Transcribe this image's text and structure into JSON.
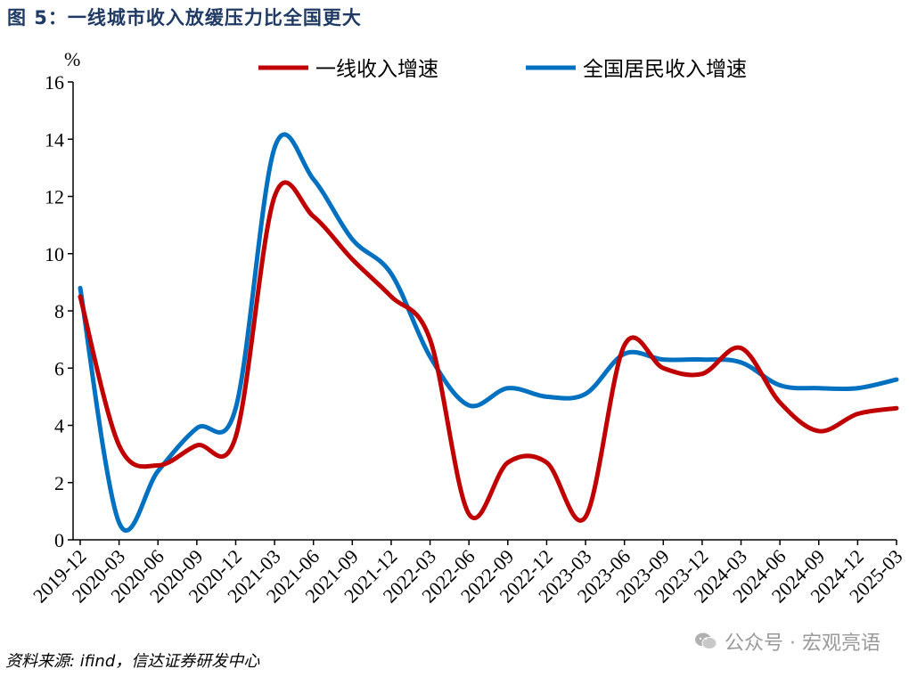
{
  "figure_title": "图 5：一线城市收入放缓压力比全国更大",
  "source_note": "资料来源: ifind，信达证券研发中心",
  "watermark": {
    "text": "公众号 · 宏观亮语",
    "icon": "wechat-icon"
  },
  "chart_data": {
    "type": "line",
    "title": "",
    "xlabel": "",
    "ylabel": "%",
    "ylim": [
      0,
      16
    ],
    "y_ticks": [
      0,
      2,
      4,
      6,
      8,
      10,
      12,
      14,
      16
    ],
    "grid": false,
    "legend_position": "top-right",
    "categories": [
      "2019-12",
      "2020-03",
      "2020-06",
      "2020-09",
      "2020-12",
      "2021-03",
      "2021-06",
      "2021-09",
      "2021-12",
      "2022-03",
      "2022-06",
      "2022-09",
      "2022-12",
      "2023-03",
      "2023-06",
      "2023-09",
      "2023-12",
      "2024-03",
      "2024-06",
      "2024-09",
      "2024-12",
      "2025-03"
    ],
    "series": [
      {
        "name": "一线收入增速",
        "color": "#c00000",
        "values": [
          8.5,
          3.3,
          2.6,
          3.3,
          3.6,
          12.0,
          11.3,
          9.8,
          8.5,
          7.0,
          0.9,
          2.7,
          2.7,
          0.8,
          6.8,
          6.0,
          5.8,
          6.7,
          4.8,
          3.8,
          4.4,
          4.6
        ]
      },
      {
        "name": "全国居民收入增速",
        "color": "#0070c0",
        "values": [
          8.8,
          0.6,
          2.4,
          3.9,
          4.6,
          13.7,
          12.6,
          10.5,
          9.3,
          6.4,
          4.7,
          5.3,
          5.0,
          5.1,
          6.5,
          6.3,
          6.3,
          6.2,
          5.4,
          5.3,
          5.3,
          5.6
        ]
      }
    ]
  }
}
